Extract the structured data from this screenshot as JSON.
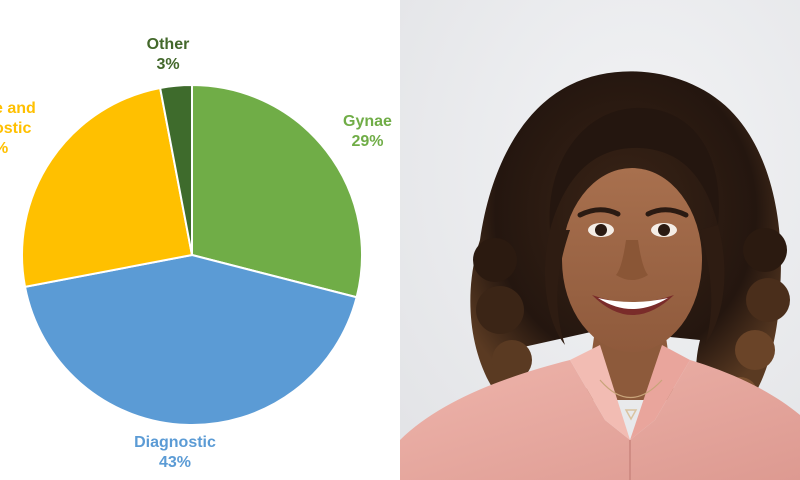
{
  "chart_data": {
    "type": "pie",
    "slices": [
      {
        "name": "Gynae",
        "value": 29,
        "color": "#70ad47",
        "text_color": "#70ad47",
        "label_name": "Gynae",
        "label_value": "29%"
      },
      {
        "name": "Diagnostic",
        "value": 43,
        "color": "#5b9bd5",
        "text_color": "#5b9bd5",
        "label_name": "Diagnostic",
        "label_value": "43%"
      },
      {
        "name": "",
        "value": 25,
        "color": "#ffc000",
        "text_color": "#ffc000",
        "label_name": "e and\nostic",
        "label_value": "%"
      },
      {
        "name": "Other",
        "value": 3,
        "color": "#3e6b2c",
        "text_color": "#43682b",
        "label_name": "Other",
        "label_value": "3%"
      }
    ],
    "start": "12 o'clock",
    "direction": "clockwise",
    "legend": "none",
    "data_labels": "name and percent, outside"
  },
  "photo": {
    "subject": "portrait",
    "background_color": "#ecedef",
    "shirt_color": "#e8a9a1",
    "hair_color": "#2a1a12"
  }
}
